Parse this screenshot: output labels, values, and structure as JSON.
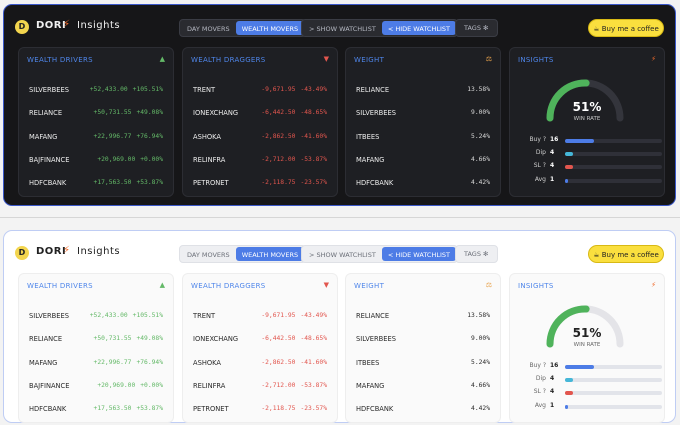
{
  "header": {
    "brand": "DORI",
    "title": "Insights",
    "tabs": [
      "DAY MOVERS",
      "WEALTH MOVERS"
    ],
    "active_tab": 1,
    "watchlist_buttons": [
      "> SHOW WATCHLIST",
      "< HIDE WATCHLIST"
    ],
    "tags_label": "TAGS",
    "coffee_label": "Buy me a coffee"
  },
  "wealth_drivers": {
    "title": "WEALTH DRIVERS",
    "rows": [
      {
        "name": "SILVERBEES",
        "amount": "+52,433.00",
        "pct": "+105.51%"
      },
      {
        "name": "RELIANCE",
        "amount": "+50,731.55",
        "pct": "+49.08%"
      },
      {
        "name": "MAFANG",
        "amount": "+22,996.77",
        "pct": "+76.94%"
      },
      {
        "name": "BAJFINANCE",
        "amount": "+20,969.00",
        "pct": "+0.00%"
      },
      {
        "name": "HDFCBANK",
        "amount": "+17,563.50",
        "pct": "+53.87%"
      }
    ]
  },
  "wealth_draggers": {
    "title": "WEALTH DRAGGERS",
    "rows": [
      {
        "name": "TRENT",
        "amount": "-9,671.95",
        "pct": "-43.49%"
      },
      {
        "name": "IONEXCHANG",
        "amount": "-6,442.50",
        "pct": "-48.65%"
      },
      {
        "name": "ASHOKA",
        "amount": "-2,862.50",
        "pct": "-41.60%"
      },
      {
        "name": "RELINFRA",
        "amount": "-2,712.00",
        "pct": "-53.87%"
      },
      {
        "name": "PETRONET",
        "amount": "-2,118.75",
        "pct": "-23.57%"
      }
    ]
  },
  "weight": {
    "title": "WEIGHT",
    "rows": [
      {
        "name": "RELIANCE",
        "value": "13.58%"
      },
      {
        "name": "SILVERBEES",
        "value": "9.00%"
      },
      {
        "name": "ITBEES",
        "value": "5.24%"
      },
      {
        "name": "MAFANG",
        "value": "4.66%"
      },
      {
        "name": "HDFCBANK",
        "value": "4.42%"
      }
    ]
  },
  "insights": {
    "title": "INSIGHTS",
    "win_rate": "51%",
    "win_rate_value": 0.51,
    "win_rate_label": "WIN RATE",
    "stats": [
      {
        "label": "Buy ?",
        "count": "16",
        "fraction": 0.3,
        "color": "#4d7ce6"
      },
      {
        "label": "Dip",
        "count": "4",
        "fraction": 0.08,
        "color": "#45b7d8"
      },
      {
        "label": "SL ?",
        "count": "4",
        "fraction": 0.08,
        "color": "#e2564e"
      },
      {
        "label": "Avg",
        "count": "1",
        "fraction": 0.02,
        "color": "#4d7ce6"
      }
    ]
  },
  "colors": {
    "accent": "#4d7ce6",
    "positive": "#64b968",
    "negative": "#e2564e",
    "coffee": "#fadf3e",
    "gauge": "#4fb35b"
  }
}
